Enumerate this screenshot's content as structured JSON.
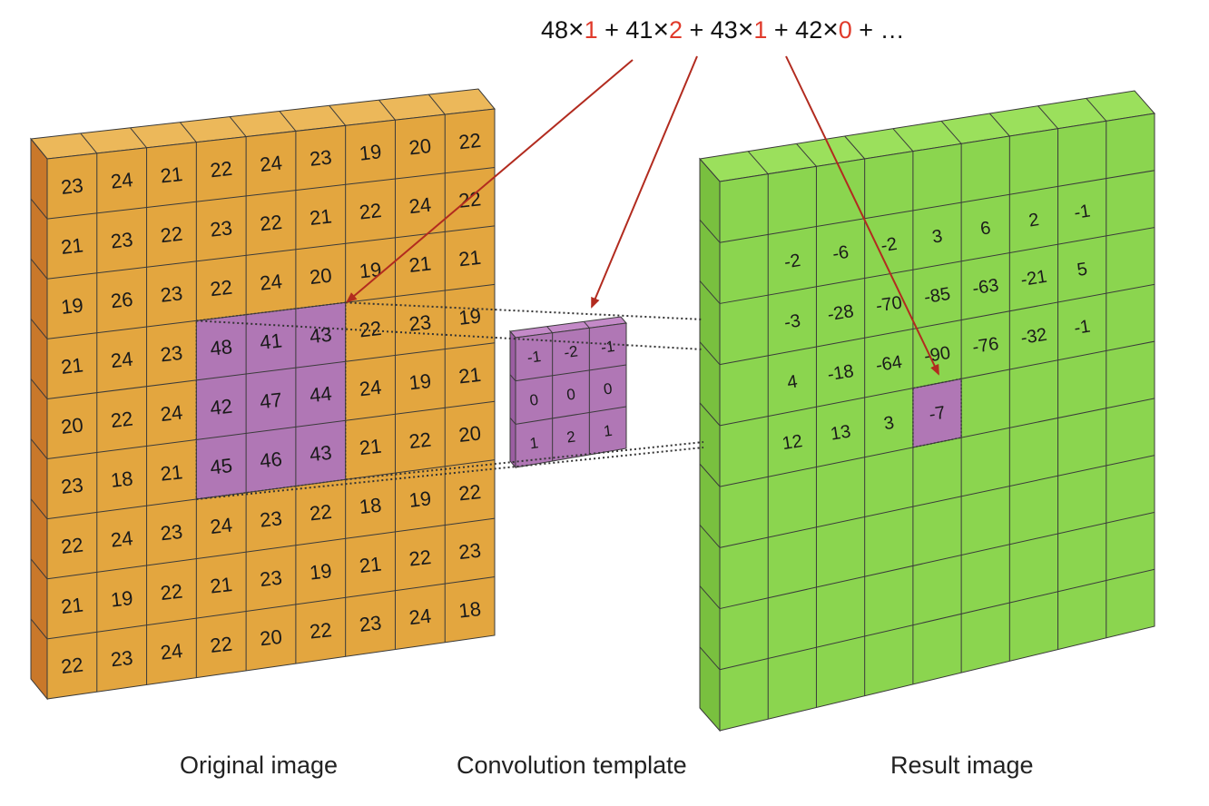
{
  "formula": {
    "terms": [
      {
        "value": "48",
        "weight": "1"
      },
      {
        "value": "41",
        "weight": "2"
      },
      {
        "value": "43",
        "weight": "1"
      },
      {
        "value": "42",
        "weight": "0"
      }
    ],
    "times_symbol": "×",
    "plus_symbol": "+",
    "ellipsis": "…"
  },
  "original": {
    "label": "Original image",
    "rows": [
      [
        "23",
        "24",
        "21",
        "22",
        "24",
        "23",
        "19",
        "20",
        "22"
      ],
      [
        "21",
        "23",
        "22",
        "23",
        "22",
        "21",
        "22",
        "24",
        "22"
      ],
      [
        "19",
        "26",
        "23",
        "22",
        "24",
        "20",
        "19",
        "21",
        "21"
      ],
      [
        "21",
        "24",
        "23",
        "48",
        "41",
        "43",
        "22",
        "23",
        "19"
      ],
      [
        "20",
        "22",
        "24",
        "42",
        "47",
        "44",
        "24",
        "19",
        "21"
      ],
      [
        "23",
        "18",
        "21",
        "45",
        "46",
        "43",
        "21",
        "22",
        "20"
      ],
      [
        "22",
        "24",
        "23",
        "24",
        "23",
        "22",
        "18",
        "19",
        "22"
      ],
      [
        "21",
        "19",
        "22",
        "21",
        "23",
        "19",
        "21",
        "22",
        "23"
      ],
      [
        "22",
        "23",
        "24",
        "22",
        "20",
        "22",
        "23",
        "24",
        "18"
      ]
    ],
    "highlight_rows": [
      3,
      5
    ],
    "highlight_cols": [
      3,
      5
    ]
  },
  "template": {
    "label": "Convolution template",
    "rows": [
      [
        "-1",
        "-2",
        "-1"
      ],
      [
        "0",
        "0",
        "0"
      ],
      [
        "1",
        "2",
        "1"
      ]
    ]
  },
  "result": {
    "label": "Result image",
    "rows": [
      [
        "",
        "",
        "",
        "",
        "",
        "",
        "",
        "",
        ""
      ],
      [
        "",
        "-2",
        "-6",
        "-2",
        "3",
        "6",
        "2",
        "-1",
        ""
      ],
      [
        "",
        "-3",
        "-28",
        "-70",
        "-85",
        "-63",
        "-21",
        "5",
        ""
      ],
      [
        "",
        "4",
        "-18",
        "-64",
        "-90",
        "-76",
        "-32",
        "-1",
        ""
      ],
      [
        "",
        "12",
        "13",
        "3",
        "-7",
        "",
        "",
        "",
        ""
      ],
      [
        "",
        "",
        "",
        "",
        "",
        "",
        "",
        "",
        ""
      ],
      [
        "",
        "",
        "",
        "",
        "",
        "",
        "",
        "",
        ""
      ],
      [
        "",
        "",
        "",
        "",
        "",
        "",
        "",
        "",
        ""
      ],
      [
        "",
        "",
        "",
        "",
        "",
        "",
        "",
        "",
        ""
      ]
    ],
    "highlight_cell": [
      4,
      4
    ]
  },
  "colors": {
    "orange_front": "#e3a63f",
    "orange_top": "#ecb85a",
    "orange_side": "#c9782a",
    "green_front": "#8bd54f",
    "green_top": "#9be05c",
    "green_side": "#79c03f",
    "purple": "#b077b5",
    "purple_side": "#9b5da2",
    "arrow": "#b22b1f",
    "weight_red": "#e03a2b"
  }
}
